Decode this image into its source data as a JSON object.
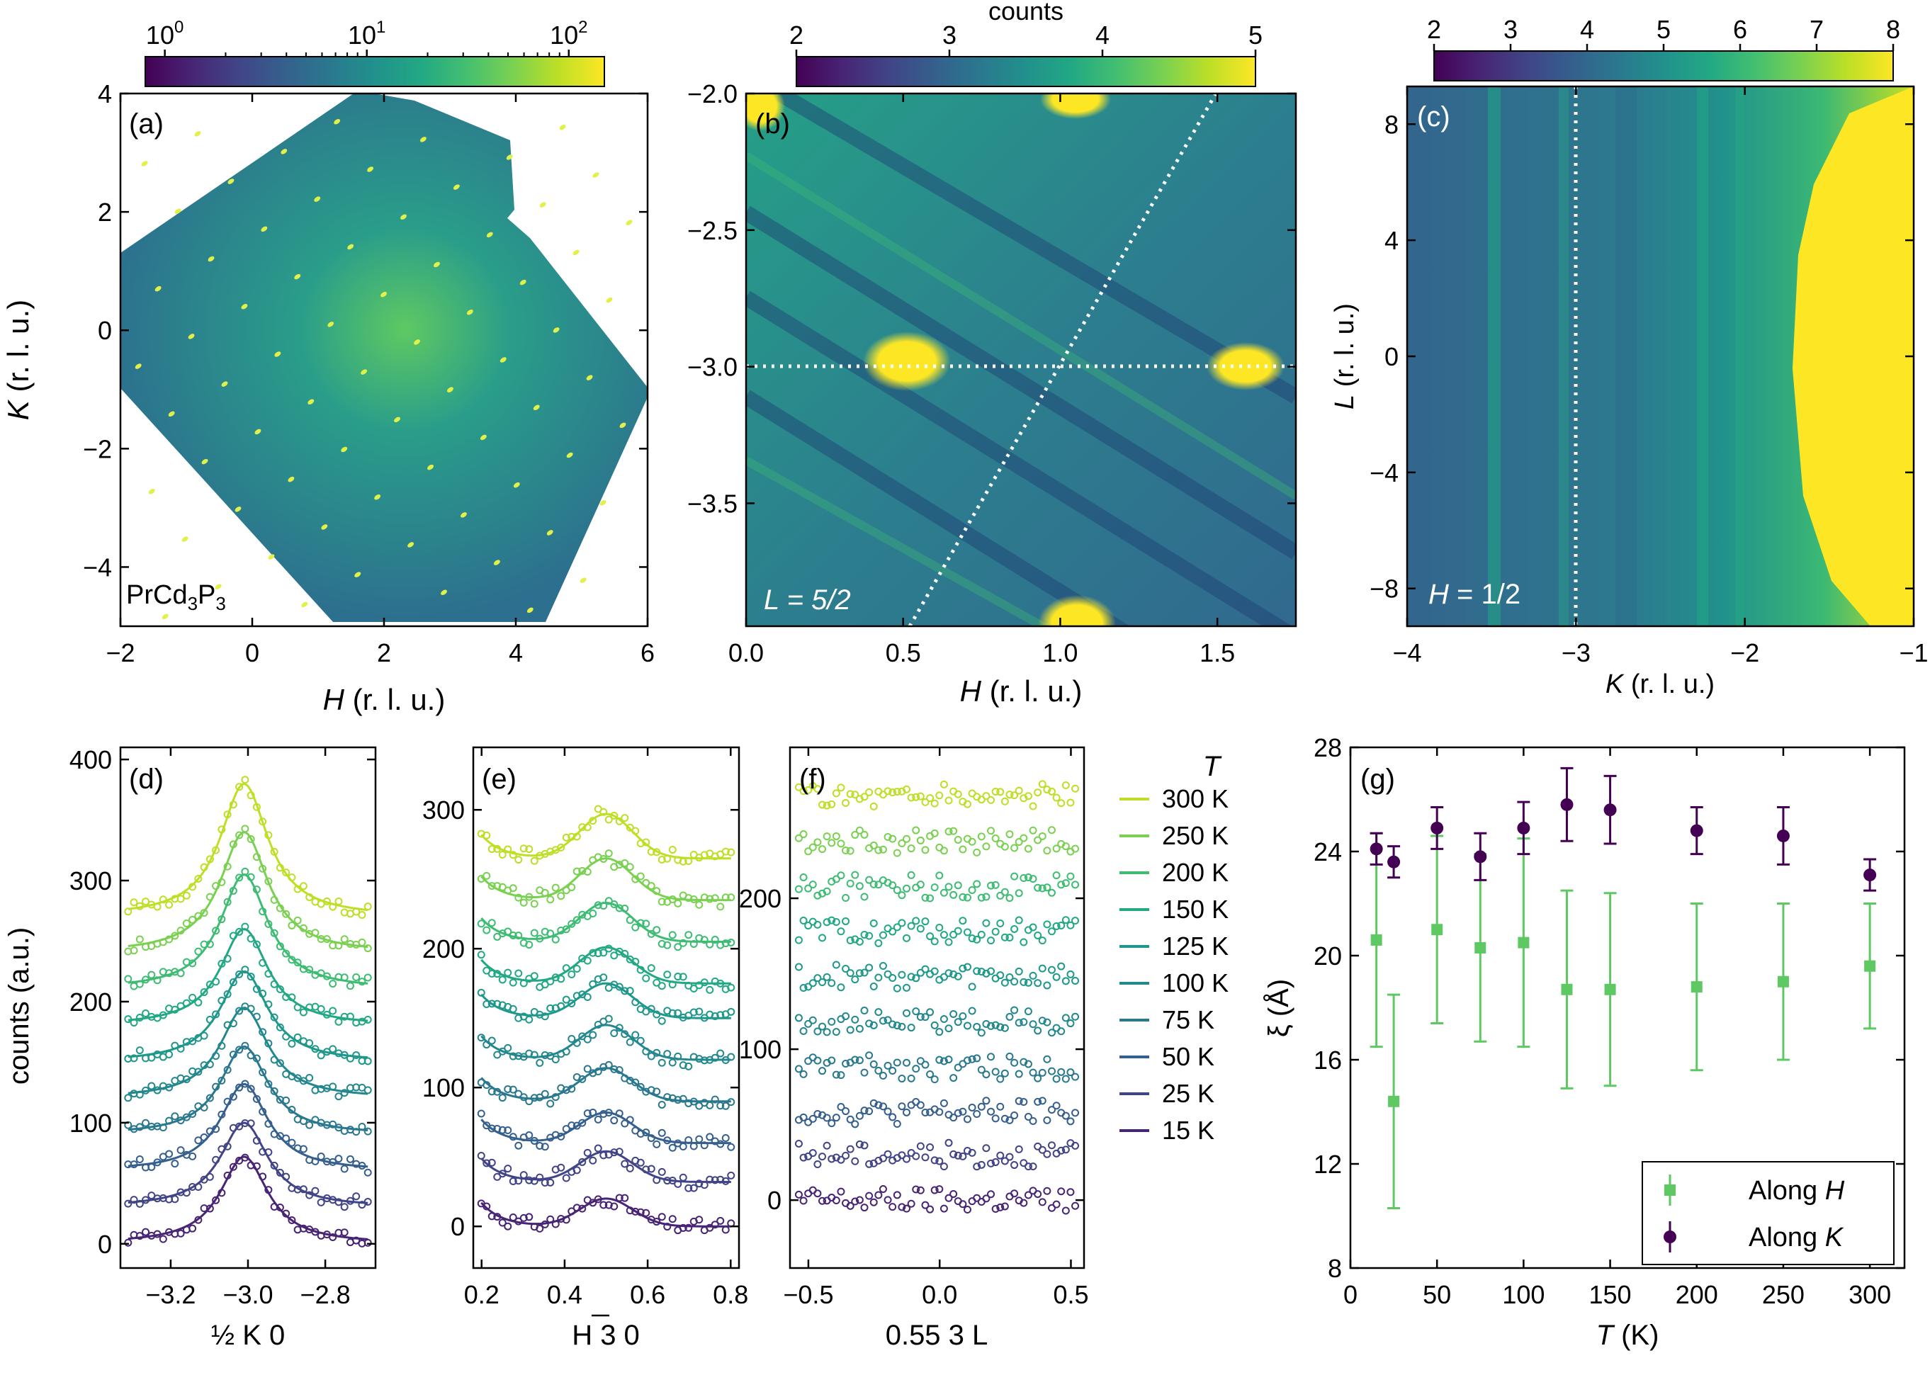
{
  "chart_data": [
    {
      "id": "a",
      "type": "heatmap",
      "panel_label": "(a)",
      "xlabel_var": "H",
      "ylabel_var": "K",
      "label_unit": " (r. l. u.)",
      "xlim": [
        -2,
        6
      ],
      "ylim": [
        -5,
        4
      ],
      "x_ticks": [
        "−2",
        "0",
        "2",
        "4",
        "6"
      ],
      "x_tick_values": [
        -2,
        0,
        2,
        4,
        6
      ],
      "y_ticks": [
        "4",
        "2",
        "0",
        "−2",
        "−4"
      ],
      "y_tick_values": [
        4,
        2,
        0,
        -2,
        -4
      ],
      "sample_label": "PrCd",
      "sample_sub1": "3",
      "sample_mid": "P",
      "sample_sub2": "3",
      "colorbar": {
        "scale": "log",
        "range": [
          0.8,
          150
        ],
        "labels": [
          "10",
          "10",
          "10"
        ],
        "exponents": [
          "0",
          "1",
          "2"
        ],
        "tick_values": [
          1,
          10,
          100
        ]
      }
    },
    {
      "id": "b",
      "type": "heatmap",
      "panel_label": "(b)",
      "xlabel_var": "H",
      "label_unit": " (r. l. u.)",
      "xlim": [
        0,
        1.75
      ],
      "ylim": [
        -3.95,
        -2.0
      ],
      "x_ticks": [
        "0.0",
        "0.5",
        "1.0",
        "1.5"
      ],
      "x_tick_values": [
        0,
        0.5,
        1.0,
        1.5
      ],
      "y_ticks": [
        "−2.0",
        "−2.5",
        "−3.0",
        "−3.5"
      ],
      "y_tick_values": [
        -2.0,
        -2.5,
        -3.0,
        -3.5
      ],
      "annotation": "L = 5/2",
      "colorbar": {
        "title": "counts",
        "range": [
          2,
          5
        ],
        "labels": [
          "2",
          "3",
          "4",
          "5"
        ],
        "tick_values": [
          2,
          3,
          4,
          5
        ]
      }
    },
    {
      "id": "c",
      "type": "heatmap",
      "panel_label": "(c)",
      "xlabel_var": "K",
      "ylabel_var": "L",
      "label_unit": " (r. l. u.)",
      "xlim": [
        -4,
        -1
      ],
      "ylim": [
        -9.3,
        9.3
      ],
      "x_ticks": [
        "−4",
        "−3",
        "−2",
        "−1"
      ],
      "x_tick_values": [
        -4,
        -3,
        -2,
        -1
      ],
      "y_ticks": [
        "8",
        "4",
        "0",
        "−4",
        "−8"
      ],
      "y_tick_values": [
        8,
        4,
        0,
        -4,
        -8
      ],
      "annotation": "H = 1/2",
      "colorbar": {
        "range": [
          2,
          8
        ],
        "labels": [
          "2",
          "3",
          "4",
          "5",
          "6",
          "7",
          "8"
        ],
        "tick_values": [
          2,
          3,
          4,
          5,
          6,
          7,
          8
        ]
      }
    },
    {
      "id": "d",
      "type": "scatter",
      "panel_label": "(d)",
      "xlabel": "½ K 0",
      "ylabel": "counts (a.u.)",
      "xlim": [
        -3.33,
        -2.67
      ],
      "ylim": [
        -20,
        410
      ],
      "x_ticks": [
        "−3.2",
        "−3.0",
        "−2.8"
      ],
      "x_tick_values": [
        -3.2,
        -3.0,
        -2.8
      ],
      "y_ticks": [
        "0",
        "100",
        "200",
        "300",
        "400"
      ],
      "y_tick_values": [
        0,
        100,
        200,
        300,
        400
      ],
      "series": [
        {
          "name": "15 K",
          "baseline": 0,
          "amplitude": 72
        },
        {
          "name": "25 K",
          "baseline": 30,
          "amplitude": 70
        },
        {
          "name": "50 K",
          "baseline": 60,
          "amplitude": 72
        },
        {
          "name": "75 K",
          "baseline": 90,
          "amplitude": 73
        },
        {
          "name": "100 K",
          "baseline": 120,
          "amplitude": 75
        },
        {
          "name": "125 K",
          "baseline": 150,
          "amplitude": 75
        },
        {
          "name": "150 K",
          "baseline": 180,
          "amplitude": 80
        },
        {
          "name": "200 K",
          "baseline": 210,
          "amplitude": 95
        },
        {
          "name": "250 K",
          "baseline": 240,
          "amplitude": 100
        },
        {
          "name": "300 K",
          "baseline": 270,
          "amplitude": 110
        }
      ]
    },
    {
      "id": "e",
      "type": "scatter",
      "panel_label": "(e)",
      "xlabel": "H 3 0",
      "xlabel_bar": "3",
      "xlim": [
        0.18,
        0.82
      ],
      "ylim": [
        -30,
        345
      ],
      "x_ticks": [
        "0.2",
        "0.4",
        "0.6",
        "0.8"
      ],
      "x_tick_values": [
        0.2,
        0.4,
        0.6,
        0.8
      ],
      "y_ticks": [
        "0",
        "100",
        "200",
        "300"
      ],
      "y_tick_values": [
        0,
        100,
        200,
        300
      ],
      "series": [
        {
          "name": "15 K",
          "baseline": 0,
          "amplitude": 20
        },
        {
          "name": "25 K",
          "baseline": 32,
          "amplitude": 22
        },
        {
          "name": "50 K",
          "baseline": 60,
          "amplitude": 22
        },
        {
          "name": "75 K",
          "baseline": 90,
          "amplitude": 24
        },
        {
          "name": "100 K",
          "baseline": 120,
          "amplitude": 25
        },
        {
          "name": "125 K",
          "baseline": 150,
          "amplitude": 25
        },
        {
          "name": "150 K",
          "baseline": 175,
          "amplitude": 26
        },
        {
          "name": "200 K",
          "baseline": 205,
          "amplitude": 28
        },
        {
          "name": "250 K",
          "baseline": 235,
          "amplitude": 30
        },
        {
          "name": "300 K",
          "baseline": 265,
          "amplitude": 32
        }
      ]
    },
    {
      "id": "f",
      "type": "scatter",
      "panel_label": "(f)",
      "xlabel": "0.55 3 L",
      "xlim": [
        -0.57,
        0.55
      ],
      "ylim": [
        -45,
        300
      ],
      "x_ticks": [
        "−0.5",
        "0.0",
        "0.5"
      ],
      "x_tick_values": [
        -0.5,
        0,
        0.5
      ],
      "y_ticks": [
        "0",
        "100",
        "200"
      ],
      "y_tick_values": [
        0,
        100,
        200
      ],
      "series": [
        {
          "name": "15 K",
          "baseline": 0
        },
        {
          "name": "25 K",
          "baseline": 30
        },
        {
          "name": "50 K",
          "baseline": 58
        },
        {
          "name": "75 K",
          "baseline": 88
        },
        {
          "name": "100 K",
          "baseline": 118
        },
        {
          "name": "125 K",
          "baseline": 148
        },
        {
          "name": "150 K",
          "baseline": 178
        },
        {
          "name": "200 K",
          "baseline": 208
        },
        {
          "name": "250 K",
          "baseline": 238
        },
        {
          "name": "300 K",
          "baseline": 268
        }
      ]
    },
    {
      "id": "g",
      "type": "scatter",
      "panel_label": "(g)",
      "xlabel_var": "T",
      "xlabel_unit": " (K)",
      "ylabel": "ξ (Å)",
      "xlim": [
        0,
        320
      ],
      "ylim": [
        8,
        28
      ],
      "x_ticks": [
        "0",
        "50",
        "100",
        "150",
        "200",
        "250",
        "300"
      ],
      "x_tick_values": [
        0,
        50,
        100,
        150,
        200,
        250,
        300
      ],
      "y_ticks": [
        "8",
        "12",
        "16",
        "20",
        "24",
        "28"
      ],
      "y_tick_values": [
        8,
        12,
        16,
        20,
        24,
        28
      ],
      "x": [
        15,
        25,
        50,
        75,
        100,
        125,
        150,
        200,
        250,
        300
      ],
      "series": [
        {
          "name": "Along H",
          "legend_text": "Along ",
          "legend_var": "H",
          "color": "#5ec962",
          "values": [
            20.6,
            14.4,
            21.0,
            20.3,
            20.5,
            18.7,
            18.7,
            18.8,
            19.0,
            19.6
          ],
          "errors": [
            4.1,
            4.1,
            3.6,
            3.6,
            4.0,
            3.8,
            3.7,
            3.2,
            3.0,
            2.4
          ]
        },
        {
          "name": "Along K",
          "legend_text": "Along ",
          "legend_var": "K",
          "color": "#440154",
          "values": [
            24.1,
            23.6,
            24.9,
            23.8,
            24.9,
            25.8,
            25.6,
            24.8,
            24.6,
            23.1
          ],
          "errors": [
            0.6,
            0.6,
            0.8,
            0.9,
            1.0,
            1.4,
            1.3,
            0.9,
            1.1,
            0.6
          ]
        }
      ]
    }
  ],
  "legend": {
    "title": "T",
    "entries": [
      "300 K",
      "250 K",
      "200 K",
      "150 K",
      "125 K",
      "100 K",
      "75 K",
      "50 K",
      "25 K",
      "15 K"
    ],
    "colors": [
      "#bddf26",
      "#7ad151",
      "#3fbc73",
      "#22a884",
      "#1f988b",
      "#23888e",
      "#2a788e",
      "#355f8d",
      "#414487",
      "#482475"
    ]
  }
}
